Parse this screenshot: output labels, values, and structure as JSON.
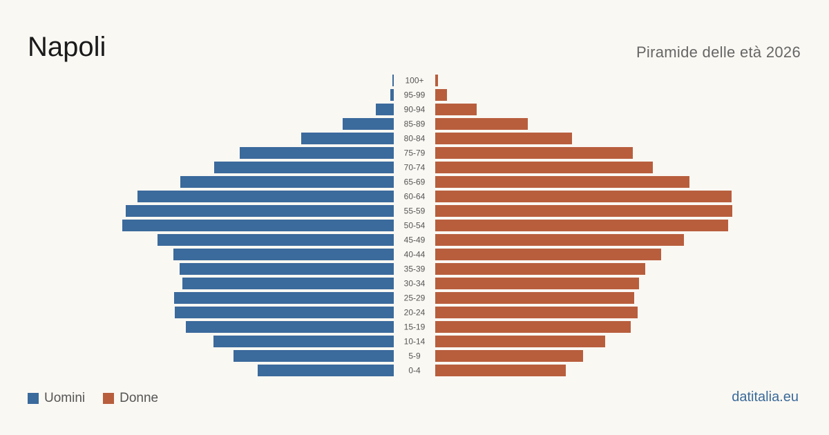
{
  "header": {
    "title": "Napoli",
    "subtitle": "Piramide delle età 2026"
  },
  "legend": {
    "men_label": "Uomini",
    "women_label": "Donne"
  },
  "brand": "datitalia.eu",
  "colors": {
    "men": "#3b6a9c",
    "women": "#b85e3d",
    "background": "#faf8f3"
  },
  "chart_data": {
    "type": "bar",
    "orientation": "horizontal-pyramid",
    "categories": [
      "100+",
      "95-99",
      "90-94",
      "85-89",
      "80-84",
      "75-79",
      "70-74",
      "65-69",
      "60-64",
      "55-59",
      "50-54",
      "45-49",
      "40-44",
      "35-39",
      "30-34",
      "25-29",
      "20-24",
      "15-19",
      "10-14",
      "5-9",
      "0-4"
    ],
    "series": [
      {
        "name": "Uomini",
        "values": [
          2,
          5,
          26,
          74,
          134,
          223,
          260,
          309,
          371,
          388,
          393,
          342,
          319,
          310,
          306,
          318,
          317,
          301,
          261,
          232,
          197
        ]
      },
      {
        "name": "Donne",
        "values": [
          4,
          17,
          60,
          134,
          198,
          286,
          315,
          368,
          429,
          430,
          424,
          360,
          327,
          304,
          295,
          288,
          293,
          283,
          246,
          214,
          189
        ]
      }
    ],
    "xlim": [
      0,
      430
    ],
    "grid": false,
    "legend_position": "bottom-left"
  }
}
